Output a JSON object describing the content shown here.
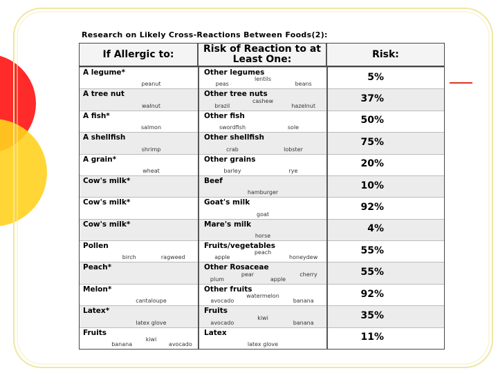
{
  "title": "Research on Likely Cross-Reactions Between Foods(2):",
  "table": {
    "headers": [
      "If Allergic to:",
      "Risk of Reaction to at Least One:",
      "Risk:"
    ],
    "rows": [
      {
        "allergen": "A legume*",
        "allergen_items": [
          "peanut"
        ],
        "related": "Other legumes",
        "related_items": [
          "peas",
          "lentils",
          "beans"
        ],
        "risk": 5,
        "risk_label": "5%"
      },
      {
        "allergen": "A tree nut",
        "allergen_items": [
          "walnut"
        ],
        "related": "Other tree nuts",
        "related_items": [
          "brazil",
          "cashew",
          "hazelnut"
        ],
        "risk": 37,
        "risk_label": "37%"
      },
      {
        "allergen": "A fish*",
        "allergen_items": [
          "salmon"
        ],
        "related": "Other fish",
        "related_items": [
          "swordfish",
          "sole"
        ],
        "risk": 50,
        "risk_label": "50%"
      },
      {
        "allergen": "A shellfish",
        "allergen_items": [
          "shrimp"
        ],
        "related": "Other shellfish",
        "related_items": [
          "crab",
          "lobster"
        ],
        "risk": 75,
        "risk_label": "75%"
      },
      {
        "allergen": "A grain*",
        "allergen_items": [
          "wheat"
        ],
        "related": "Other grains",
        "related_items": [
          "barley",
          "rye"
        ],
        "risk": 20,
        "risk_label": "20%"
      },
      {
        "allergen": "Cow's milk*",
        "allergen_items": [],
        "related": "Beef",
        "related_items": [
          "hamburger"
        ],
        "risk": 10,
        "risk_label": "10%"
      },
      {
        "allergen": "Cow's milk*",
        "allergen_items": [],
        "related": "Goat's milk",
        "related_items": [
          "goat"
        ],
        "risk": 92,
        "risk_label": "92%"
      },
      {
        "allergen": "Cow's milk*",
        "allergen_items": [],
        "related": "Mare's milk",
        "related_items": [
          "horse"
        ],
        "risk": 4,
        "risk_label": "4%"
      },
      {
        "allergen": "Pollen",
        "allergen_items": [
          "birch",
          "ragweed"
        ],
        "related": "Fruits/vegetables",
        "related_items": [
          "apple",
          "peach",
          "honeydew"
        ],
        "risk": 55,
        "risk_label": "55%"
      },
      {
        "allergen": "Peach*",
        "allergen_items": [],
        "related": "Other Rosaceae",
        "related_items": [
          "plum",
          "pear",
          "apple",
          "cherry"
        ],
        "risk": 55,
        "risk_label": "55%"
      },
      {
        "allergen": "Melon*",
        "allergen_items": [
          "cantaloupe"
        ],
        "related": "Other fruits",
        "related_items": [
          "avocado",
          "watermelon",
          "banana"
        ],
        "risk": 92,
        "risk_label": "92%"
      },
      {
        "allergen": "Latex*",
        "allergen_items": [
          "latex glove"
        ],
        "related": "Fruits",
        "related_items": [
          "avocado",
          "kiwi",
          "banana"
        ],
        "risk": 35,
        "risk_label": "35%"
      },
      {
        "allergen": "Fruits",
        "allergen_items": [
          "banana",
          "kiwi",
          "avocado"
        ],
        "related": "Latex",
        "related_items": [
          "latex glove"
        ],
        "risk": 11,
        "risk_label": "11%"
      }
    ]
  }
}
